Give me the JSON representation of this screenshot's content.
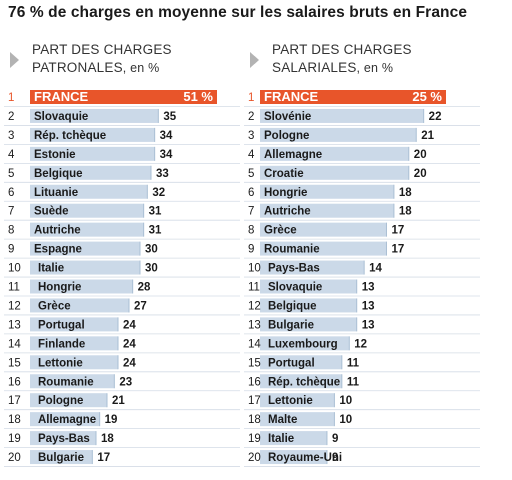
{
  "title": "76 % de charges en moyenne sur les salaires bruts en France",
  "colors": {
    "highlight": "#e8552a",
    "bar": "#cbd9e8",
    "bar_edge": "#aabfd4",
    "rule": "#d4dce6"
  },
  "chart_data": [
    {
      "type": "bar",
      "orientation": "horizontal",
      "title_lines": [
        "PART DES CHARGES",
        "PATRONALES, en %"
      ],
      "title_caps": "PATRONALES",
      "title_unit": ", en %",
      "ranks": [
        "1",
        "2",
        "3",
        "4",
        "5",
        "6",
        "7",
        "8",
        "9",
        "10",
        "11",
        "12",
        "13",
        "14",
        "15",
        "16",
        "17",
        "18",
        "19",
        "20"
      ],
      "categories": [
        "FRANCE",
        "Slovaquie",
        "Rép. tchèque",
        "Estonie",
        "Belgique",
        "Lituanie",
        "Suède",
        "Autriche",
        "Espagne",
        "Italie",
        "Hongrie",
        "Grèce",
        "Portugal",
        "Finlande",
        "Lettonie",
        "Roumanie",
        "Pologne",
        "Allemagne",
        "Pays-Bas",
        "Bulgarie"
      ],
      "values": [
        51,
        35,
        34,
        34,
        33,
        32,
        31,
        31,
        30,
        30,
        28,
        27,
        24,
        24,
        24,
        23,
        21,
        19,
        18,
        17
      ],
      "labels": [
        "51 %",
        "35",
        "34",
        "34",
        "33",
        "32",
        "31",
        "31",
        "30",
        "30",
        "28",
        "27",
        "24",
        "24",
        "24",
        "23",
        "21",
        "19",
        "18",
        "17"
      ],
      "highlight_index": 0
    },
    {
      "type": "bar",
      "orientation": "horizontal",
      "title_lines": [
        "PART DES CHARGES",
        "SALARIALES, en %"
      ],
      "title_caps": "SALARIALES",
      "title_unit": ", en %",
      "ranks": [
        "1",
        "2",
        "3",
        "4",
        "5",
        "6",
        "7",
        "8",
        "9",
        "10",
        "11",
        "12",
        "13",
        "14",
        "15",
        "16",
        "17",
        "18",
        "19",
        "20"
      ],
      "categories": [
        "FRANCE",
        "Slovénie",
        "Pologne",
        "Allemagne",
        "Croatie",
        "Hongrie",
        "Autriche",
        "Grèce",
        "Roumanie",
        "Pays-Bas",
        "Slovaquie",
        "Belgique",
        "Bulgarie",
        "Luxembourg",
        "Portugal",
        "Rép. tchèque",
        "Lettonie",
        "Malte",
        "Italie",
        "Royaume-Uni"
      ],
      "values": [
        25,
        22,
        21,
        20,
        20,
        18,
        18,
        17,
        17,
        14,
        13,
        13,
        13,
        12,
        11,
        11,
        10,
        10,
        9,
        9
      ],
      "labels": [
        "25 %",
        "22",
        "21",
        "20",
        "20",
        "18",
        "18",
        "17",
        "17",
        "14",
        "13",
        "13",
        "13",
        "12",
        "11",
        "11",
        "10",
        "10",
        "9",
        "9"
      ],
      "highlight_index": 0
    }
  ]
}
